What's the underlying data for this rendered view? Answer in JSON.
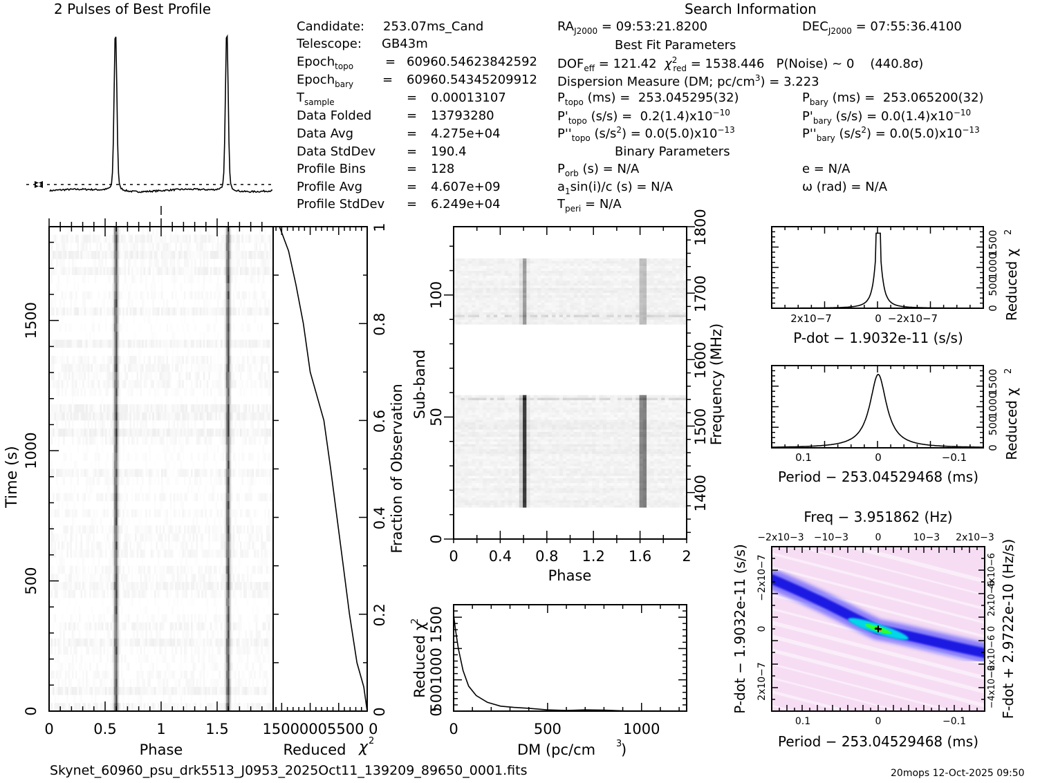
{
  "titles": {
    "profile": "2 Pulses of Best Profile",
    "search_info": "Search Information",
    "best_fit": "Best Fit Parameters",
    "binary": "Binary Parameters"
  },
  "left_info": [
    {
      "label": "Candidate:",
      "sub": "",
      "value": "253.07ms_Cand",
      "eq": ""
    },
    {
      "label": "Telescope:",
      "sub": "",
      "value": "GB43m",
      "eq": ""
    },
    {
      "label": "Epoch",
      "sub": "topo",
      "value": "60960.54623842592",
      "eq": "="
    },
    {
      "label": "Epoch",
      "sub": "bary",
      "value": "60960.54345209912",
      "eq": "="
    },
    {
      "label": "T",
      "sub": "sample",
      "value": "0.00013107",
      "eq": "="
    },
    {
      "label": "Data Folded",
      "sub": "",
      "value": "13793280",
      "eq": "="
    },
    {
      "label": "Data Avg",
      "sub": "",
      "value": "4.275e+04",
      "eq": "="
    },
    {
      "label": "Data StdDev",
      "sub": "",
      "value": "190.4",
      "eq": "="
    },
    {
      "label": "Profile Bins",
      "sub": "",
      "value": "128",
      "eq": "="
    },
    {
      "label": "Profile Avg",
      "sub": "",
      "value": "4.607e+09",
      "eq": "="
    },
    {
      "label": "Profile StdDev",
      "sub": "",
      "value": "6.249e+04",
      "eq": "="
    }
  ],
  "search": {
    "ra_label": "RA",
    "ra_sub": "J2000",
    "ra_value": "= 09:53:21.8200",
    "dec_label": "DEC",
    "dec_sub": "J2000",
    "dec_value": "= 07:55:36.4100",
    "dof_label": "DOF",
    "dof_sub": "eff",
    "dof_value": "= 121.42",
    "chi_label": "χ",
    "chi_sup": "2",
    "chi_sub": "red",
    "chi_value": "= 1538.446",
    "pnoise": "P(Noise) ~ 0",
    "sigma": "(440.8σ)",
    "dm_line_a": "Dispersion Measure (DM; pc/cm",
    "dm_line_sup": "3",
    "dm_line_b": ") = 3.223",
    "ptopo_label": "P",
    "ptopo_sub": "topo",
    "ptopo_value": "(ms) =  253.045295(32)",
    "pbary_label": "P",
    "pbary_sub": "bary",
    "pbary_value": "(ms) =  253.065200(32)",
    "pdtopo_label": "P'",
    "pdtopo_sub": "topo",
    "pdtopo_value": "(s/s) =  0.2(1.4)x10",
    "pdtopo_exp": "−10",
    "pdbary_label": "P'",
    "pdbary_sub": "bary",
    "pdbary_value": "(s/s) = 0.0(1.4)x10",
    "pdbary_exp": "−10",
    "pddtopo_label": "P''",
    "pddtopo_sub": "topo",
    "pddtopo_value_a": "(s/s",
    "pddtopo_sup": "2",
    "pddtopo_value_b": ") = 0.0(5.0)x10",
    "pddtopo_exp": "−13",
    "pddbary_label": "P''",
    "pddbary_sub": "bary",
    "pddbary_value_a": "(s/s",
    "pddbary_sup": "2",
    "pddbary_value_b": ") = 0.0(5.0)x10",
    "pddbary_exp": "−13",
    "porb_label": "P",
    "porb_sub": "orb",
    "porb_value": "(s) = N/A",
    "e_value": "e = N/A",
    "a1_label": "a",
    "a1_sub": "1",
    "a1_value": "sin(i)/c (s) = N/A",
    "omega_value": "ω (rad) = N/A",
    "tperi_label": "T",
    "tperi_sub": "peri",
    "tperi_value": "= N/A"
  },
  "footer": {
    "filename": "Skynet_60960_psu_drk5513_J0953_2025Oct11_139209_89650_0001.fits",
    "stamp": "20mops 12-Oct-2025 09:50"
  },
  "chart_data": [
    {
      "id": "profile",
      "type": "line",
      "title": "2 Pulses of Best Profile",
      "x": "phase 0-2",
      "peaks_phase": [
        0.59,
        1.59
      ],
      "baseline_dashed": true
    },
    {
      "id": "time-phase",
      "type": "heatmap",
      "xlabel": "Phase",
      "ylabel": "Time (s)",
      "xticks": [
        "0",
        "0.5",
        "1",
        "1.5"
      ],
      "yticks": [
        "0",
        "500",
        "1000",
        "1500"
      ],
      "xlim": [
        0,
        2
      ],
      "ylim": [
        0,
        1860
      ],
      "pulse_phases": [
        0.59,
        1.59
      ]
    },
    {
      "id": "chi-vs-time",
      "type": "line",
      "xlabel": "Reduced χ2",
      "xlabel_text": "Reduced ",
      "xticks": [
        "1500",
        "1000",
        "500",
        "0"
      ],
      "xticks_text": "15000005500 0",
      "ylabel": "Fraction of Observation",
      "yticks": [
        "0",
        "0.2",
        "0.4",
        "0.6",
        "0.8",
        "1"
      ],
      "xlim": [
        1650,
        0
      ],
      "ylim": [
        0,
        1
      ],
      "points": [
        [
          0,
          0
        ],
        [
          60,
          0.05
        ],
        [
          180,
          0.1
        ],
        [
          310,
          0.2
        ],
        [
          420,
          0.3
        ],
        [
          530,
          0.4
        ],
        [
          640,
          0.5
        ],
        [
          760,
          0.6
        ],
        [
          880,
          0.65
        ],
        [
          1000,
          0.7
        ],
        [
          1120,
          0.8
        ],
        [
          1250,
          0.88
        ],
        [
          1380,
          0.95
        ],
        [
          1538,
          1
        ]
      ]
    },
    {
      "id": "subband",
      "type": "heatmap",
      "xlabel": "Phase",
      "ylabel": "Sub-band",
      "y2label": "Frequency (MHz)",
      "xticks": [
        "0",
        "0.4",
        "0.8",
        "1.2",
        "1.6",
        "2"
      ],
      "yticks": [
        "0",
        "50",
        "100"
      ],
      "y2ticks": [
        "1400",
        "1500",
        "1600",
        "1700",
        "1800"
      ],
      "xlim": [
        0,
        2
      ],
      "ylim": [
        0,
        128
      ],
      "bands": [
        [
          13,
          59
        ],
        [
          88,
          115
        ]
      ],
      "pulse_phases": [
        0.59,
        1.61
      ]
    },
    {
      "id": "dm",
      "type": "line",
      "xlabel": "DM (pc/cm3)",
      "xlabel_a": "DM (pc/cm",
      "xlabel_sup": "3",
      "xlabel_b": ")",
      "ylabel": "Reduced χ2",
      "xticks": [
        "0",
        "500",
        "1000"
      ],
      "yticks_text": "5001000 1500",
      "yticks": [
        "0",
        "500",
        "1000",
        "1500"
      ],
      "xlim": [
        0,
        1240
      ],
      "ylim": [
        0,
        1700
      ],
      "points": [
        [
          0,
          1540
        ],
        [
          10,
          1300
        ],
        [
          25,
          1000
        ],
        [
          50,
          650
        ],
        [
          80,
          400
        ],
        [
          120,
          250
        ],
        [
          180,
          140
        ],
        [
          250,
          80
        ],
        [
          320,
          60
        ],
        [
          400,
          45
        ],
        [
          500,
          20
        ],
        [
          600,
          10
        ],
        [
          700,
          20
        ],
        [
          800,
          15
        ],
        [
          900,
          5
        ],
        [
          1000,
          3
        ],
        [
          1240,
          2
        ]
      ]
    },
    {
      "id": "pdot",
      "type": "line",
      "xlabel": "P-dot − 1.9032e-11 (s/s)",
      "ylabel": "Reduced χ2",
      "xticks": [
        "2x10−7",
        "0",
        "−2x10−7"
      ],
      "yticks": [
        "0",
        "500",
        "1000",
        "1500"
      ],
      "peak": 1538
    },
    {
      "id": "period",
      "type": "line",
      "xlabel": "Period − 253.04529468 (ms)",
      "ylabel": "Reduced χ2",
      "xticks": [
        "0.1",
        "0",
        "−0.1"
      ],
      "yticks": [
        "0",
        "500",
        "1000",
        "1500"
      ],
      "peak": 1538
    },
    {
      "id": "p-pdot",
      "type": "heatmap",
      "title": "Freq − 3.951862 (Hz)",
      "xlabel": "Period − 253.04529468 (ms)",
      "ylabel": "P-dot − 1.9032e-11 (s/s)",
      "y2label": "F-dot + 2.9722e-10 (Hz/s)",
      "xticks": [
        "0.1",
        "0",
        "−0.1"
      ],
      "x2ticks": [
        "−2x10−3",
        "−10−3",
        "0",
        "10−3",
        "2x10−3"
      ],
      "yticks": [
        "−2x10−7",
        "0",
        "2x10−7"
      ],
      "y2ticks": [
        "4x10−6",
        "2x10−6",
        "0",
        "−2x10−6",
        "−4x10−6"
      ],
      "colors": [
        "#ffffff",
        "#f6ddf4",
        "#0000ff",
        "#00ffff",
        "#00ff00",
        "#ff0000"
      ]
    }
  ]
}
